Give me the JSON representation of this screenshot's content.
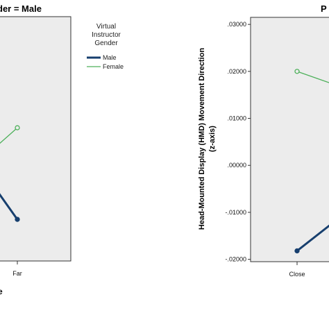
{
  "chart_data": [
    {
      "type": "line",
      "title": "der = Male",
      "xlabel": "e",
      "categories": [
        "Far"
      ],
      "colors": {
        "Male": "#173f6e",
        "Female": "#4db05a"
      },
      "series": [
        {
          "name": "Male",
          "values": [
            -0.0115
          ]
        },
        {
          "name": "Female",
          "values": [
            0.008
          ]
        }
      ],
      "legend": {
        "title_lines": [
          "Virtual",
          "Instructor",
          "Gender"
        ],
        "items": [
          "Male",
          "Female"
        ],
        "placement": "right"
      },
      "grid": false
    },
    {
      "type": "line",
      "title": "P",
      "ylabel_lines": [
        "Head-Mounted Display (HMD) Movement Direction",
        "(z-axis)"
      ],
      "categories": [
        "Close"
      ],
      "yticks": [
        ".03000",
        ".02000",
        ".01000",
        ".00000",
        "-.01000",
        "-.02000"
      ],
      "ylim": [
        -0.0205,
        0.0315
      ],
      "colors": {
        "Male": "#173f6e",
        "Female": "#4db05a"
      },
      "series": [
        {
          "name": "Male",
          "values": [
            -0.0182
          ]
        },
        {
          "name": "Female",
          "values": [
            0.02
          ]
        }
      ],
      "grid": false
    }
  ]
}
